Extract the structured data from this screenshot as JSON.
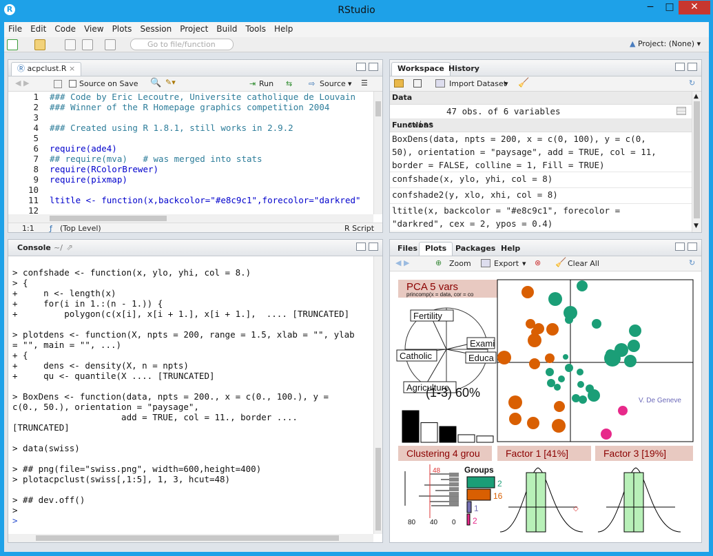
{
  "window": {
    "title": "RStudio",
    "min": "−",
    "max": "□",
    "close": "✕"
  },
  "menu": [
    "File",
    "Edit",
    "Code",
    "View",
    "Plots",
    "Session",
    "Project",
    "Build",
    "Tools",
    "Help"
  ],
  "toolbar": {
    "goto_placeholder": "Go to file/function",
    "project": "Project: (None)"
  },
  "editor": {
    "tab": "acpclust.R",
    "source_on_save": "Source on Save",
    "run": "Run",
    "source": "Source",
    "lines": [
      {
        "n": "1",
        "t": "### Code by Eric Lecoutre, Universite catholique de Louvain",
        "c": "cmt"
      },
      {
        "n": "2",
        "t": "### Winner of the R Homepage graphics competition 2004",
        "c": "cmt"
      },
      {
        "n": "3",
        "t": "",
        "c": ""
      },
      {
        "n": "4",
        "t": "### Created using R 1.8.1, still works in 2.9.2",
        "c": "cmt"
      },
      {
        "n": "5",
        "t": "",
        "c": ""
      },
      {
        "n": "6",
        "t": "require(ade4)",
        "c": "req"
      },
      {
        "n": "7",
        "t": "## require(mva)   # was merged into stats",
        "c": "cmt"
      },
      {
        "n": "8",
        "t": "require(RColorBrewer)",
        "c": "req"
      },
      {
        "n": "9",
        "t": "require(pixmap)",
        "c": "req"
      },
      {
        "n": "10",
        "t": "",
        "c": ""
      },
      {
        "n": "11",
        "t": "ltitle <- function(x,backcolor=\"#e8c9c1\",forecolor=\"darkred\"",
        "c": "fn"
      },
      {
        "n": "12",
        "t": "",
        "c": ""
      }
    ],
    "status_pos": "1:1",
    "status_scope": "(Top Level)",
    "status_type": "R Script"
  },
  "workspace": {
    "tabs": [
      "Workspace",
      "History"
    ],
    "import": "Import Dataset",
    "data_header": "Data",
    "data_rows": [
      {
        "name": "swiss",
        "value": "47 obs. of 6 variables"
      }
    ],
    "functions_header": "Functions",
    "functions": [
      "BoxDens(data, npts = 200, x = c(0, 100), y = c(0,\n50), orientation = \"paysage\", add = TRUE, col = 11,\nborder = FALSE, colline = 1, Fill = TRUE)",
      "confshade(x, ylo, yhi, col = 8)",
      "confshade2(y, xlo, xhi, col = 8)",
      "ltitle(x, backcolor = \"#e8c9c1\", forecolor =\n\"darkred\", cex = 2, ypos = 0.4)"
    ]
  },
  "console": {
    "title": "Console",
    "path": "~/",
    "lines": [
      "> confshade <- function(x, ylo, yhi, col = 8.)",
      "> {",
      "+     n <- length(x)",
      "+     for(i in 1.:(n - 1.)) {",
      "+         polygon(c(x[i], x[i + 1.], x[i + 1.],  .... [TRUNCATED]",
      "",
      "> plotdens <- function(X, npts = 200, range = 1.5, xlab = \"\", ylab",
      "= \"\", main = \"\", ...)",
      "+ {",
      "+     dens <- density(X, n = npts)",
      "+     qu <- quantile(X .... [TRUNCATED]",
      "",
      "> BoxDens <- function(data, npts = 200., x = c(0., 100.), y =",
      "c(0., 50.), orientation = \"paysage\",",
      "                     add = TRUE, col = 11., border ....",
      "[TRUNCATED]",
      "",
      "> data(swiss)",
      "",
      "> ## png(file=\"swiss.png\", width=600,height=400)",
      "> plotacpclust(swiss[,1:5], 1, 3, hcut=48)",
      "",
      "> ## dev.off()",
      ">",
      ">"
    ]
  },
  "plots": {
    "tabs": [
      "Files",
      "Plots",
      "Packages",
      "Help"
    ],
    "zoom": "Zoom",
    "export": "Export",
    "clear": "Clear All",
    "pca_title": "PCA  5 vars",
    "pca_sub": "princomp(x = data, cor = co",
    "vars": [
      "Fertility",
      "Exami",
      "Catholic",
      "Educa",
      "Agriculture"
    ],
    "variance": "(1-3) 60%",
    "scree": [
      1.0,
      0.62,
      0.5,
      0.24,
      0.2
    ],
    "geneve": "V. De Geneve",
    "clustering": "Clustering  4 grou",
    "factor1": "Factor 1 [41%]",
    "factor3": "Factor 3 [19%]",
    "dendro_axis": [
      "80",
      "40",
      "0"
    ],
    "hcut": "48",
    "groups_title": "Groups",
    "groups": [
      {
        "n": "2",
        "c": "#1b9e77"
      },
      {
        "n": "16",
        "c": "#d95f02"
      },
      {
        "n": "1",
        "c": "#7570b3"
      },
      {
        "n": "2",
        "c": "#e7298a"
      }
    ],
    "colors": {
      "green": "#1b9e77",
      "orange": "#d95f02",
      "pink": "#e7298a",
      "title_bg": "#e8c9c1",
      "title_fg": "#8b0000"
    }
  }
}
